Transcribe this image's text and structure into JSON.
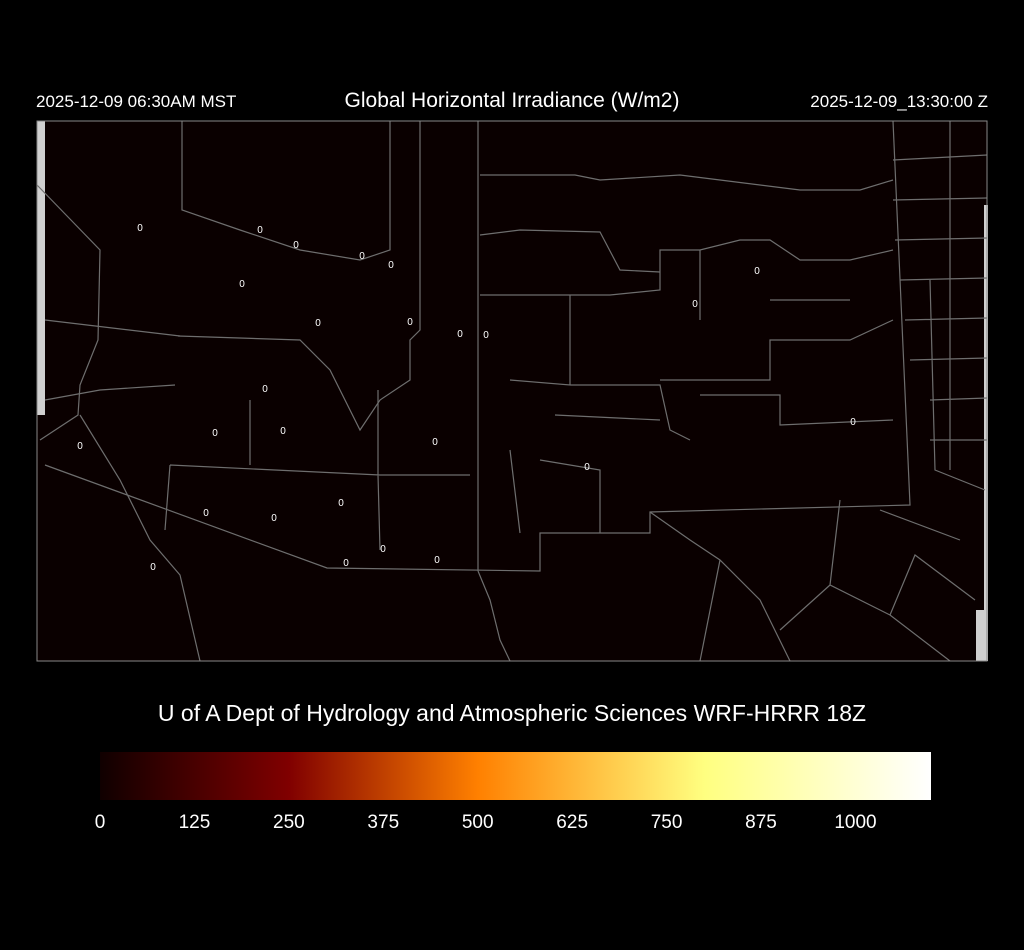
{
  "header": {
    "local_time": "2025-12-09 06:30AM MST",
    "title": "Global Horizontal Irradiance (W/m2)",
    "utc_time": "2025-12-09_13:30:00 Z"
  },
  "map": {
    "background_color": "#0a0000",
    "border_color": "#6e6e6e",
    "station_values": [
      "0",
      "0",
      "0",
      "0",
      "0",
      "0",
      "0",
      "0",
      "0",
      "0",
      "0",
      "0",
      "0",
      "0",
      "0",
      "0",
      "0",
      "0",
      "0",
      "0",
      "0",
      "0",
      "0",
      "0",
      "0",
      "0"
    ]
  },
  "credit": "U of A Dept of Hydrology and Atmospheric Sciences WRF-HRRR 18Z",
  "colorbar": {
    "min": 0,
    "max": 1100,
    "colors": [
      "#100000",
      "#800000",
      "#ff8000",
      "#ffff80",
      "#ffffff"
    ],
    "ticks": [
      "0",
      "125",
      "250",
      "375",
      "500",
      "625",
      "750",
      "875",
      "1000"
    ]
  }
}
